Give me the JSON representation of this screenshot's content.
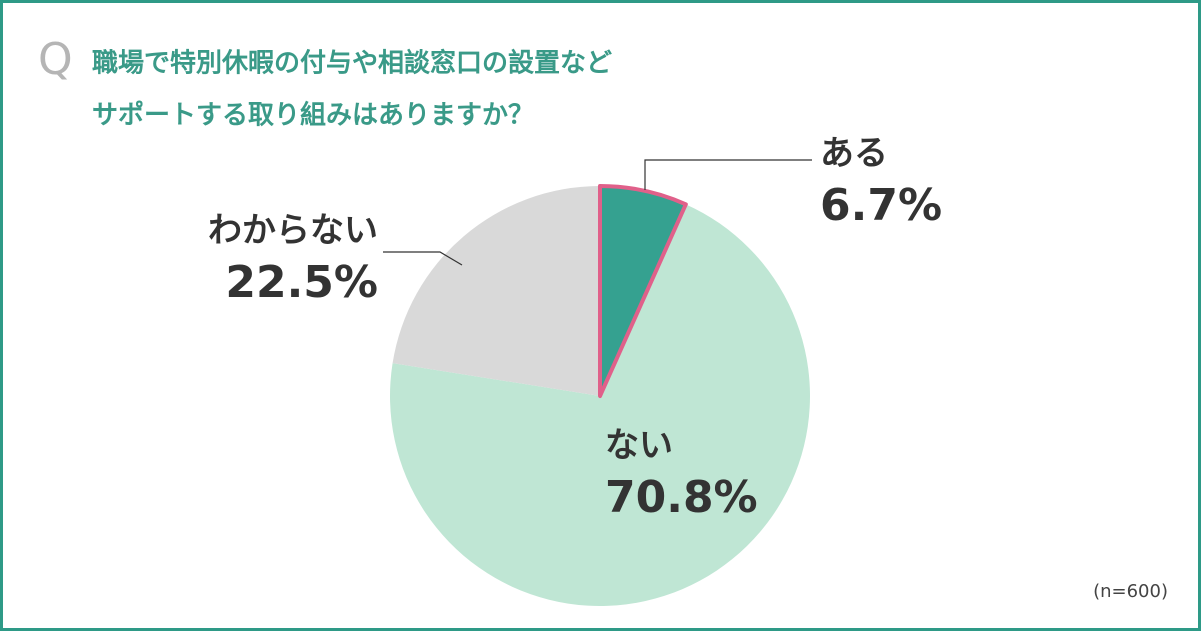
{
  "chart_data": {
    "type": "pie",
    "question_mark": "Q",
    "title_lines": [
      "職場で特別休暇の付与や相談窓口の設置など",
      "サポートする取り組みはありますか？"
    ],
    "categories": [
      "ある",
      "ない",
      "わからない"
    ],
    "values": [
      6.7,
      70.8,
      22.5
    ],
    "value_labels": [
      "6.7%",
      "70.8%",
      "22.5%"
    ],
    "colors": [
      "#35a190",
      "#bfe6d4",
      "#d9d9d9"
    ],
    "edge_colors": [
      "#e0608a",
      null,
      null
    ],
    "note": "(n=600)"
  }
}
